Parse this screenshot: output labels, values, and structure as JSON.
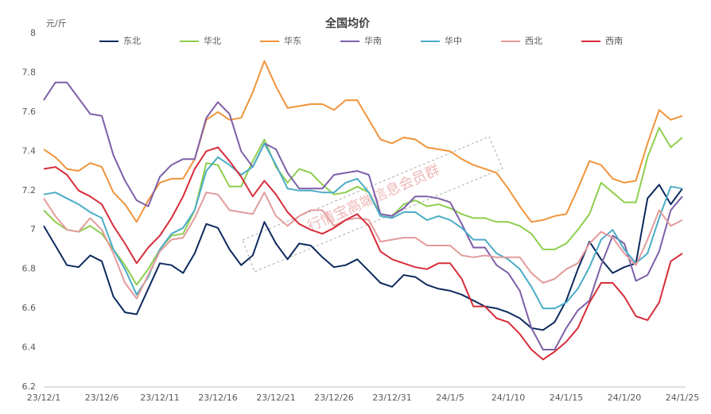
{
  "chart_data": {
    "type": "line",
    "title": "全国均价",
    "y_label": "元/斤",
    "watermark": "行情宝高端信息会员群",
    "categories": [
      "23/12/1",
      null,
      null,
      null,
      null,
      "23/12/6",
      null,
      null,
      null,
      null,
      "23/12/11",
      null,
      null,
      null,
      null,
      "23/12/16",
      null,
      null,
      null,
      null,
      "23/12/21",
      null,
      null,
      null,
      null,
      "23/12/26",
      null,
      null,
      null,
      null,
      "23/12/31",
      null,
      null,
      null,
      null,
      "24/1/5",
      null,
      null,
      null,
      null,
      "24/1/10",
      null,
      null,
      null,
      null,
      "24/1/15",
      null,
      null,
      null,
      null,
      "24/1/20",
      null,
      null,
      null,
      null,
      "24/1/25"
    ],
    "ylim": [
      6.2,
      8
    ],
    "yticks": [
      6.2,
      6.4,
      6.6,
      6.8,
      7,
      7.2,
      7.4,
      7.6,
      7.8,
      8
    ],
    "grid": false,
    "legend": "top",
    "series": [
      {
        "name": "东北",
        "color": "#0d2a5e",
        "values": [
          7.02,
          6.92,
          6.82,
          6.81,
          6.87,
          6.84,
          6.66,
          6.58,
          6.57,
          6.7,
          6.83,
          6.82,
          6.78,
          6.88,
          7.03,
          7.01,
          6.9,
          6.82,
          6.87,
          7.04,
          6.93,
          6.85,
          6.93,
          6.92,
          6.86,
          6.81,
          6.82,
          6.85,
          6.79,
          6.73,
          6.71,
          6.77,
          6.76,
          6.72,
          6.7,
          6.69,
          6.67,
          6.64,
          6.61,
          6.6,
          6.58,
          6.55,
          6.5,
          6.49,
          6.53,
          6.64,
          6.8,
          6.94,
          6.85,
          6.78,
          6.81,
          6.83,
          7.16,
          7.23,
          7.13,
          7.21
        ]
      },
      {
        "name": "华北",
        "color": "#8fce4f",
        "values": [
          7.1,
          7.04,
          7.0,
          6.99,
          7.02,
          6.98,
          6.9,
          6.82,
          6.72,
          6.8,
          6.9,
          6.97,
          6.98,
          7.1,
          7.34,
          7.33,
          7.22,
          7.22,
          7.35,
          7.46,
          7.32,
          7.24,
          7.31,
          7.29,
          7.23,
          7.18,
          7.19,
          7.22,
          7.19,
          7.08,
          7.07,
          7.13,
          7.15,
          7.12,
          7.13,
          7.11,
          7.08,
          7.06,
          7.06,
          7.04,
          7.04,
          7.02,
          6.98,
          6.9,
          6.9,
          6.93,
          7.0,
          7.08,
          7.24,
          7.19,
          7.14,
          7.14,
          7.37,
          7.52,
          7.42,
          7.47
        ]
      },
      {
        "name": "华东",
        "color": "#f0943b",
        "values": [
          7.41,
          7.37,
          7.31,
          7.3,
          7.34,
          7.32,
          7.19,
          7.13,
          7.04,
          7.15,
          7.24,
          7.26,
          7.26,
          7.36,
          7.56,
          7.6,
          7.56,
          7.57,
          7.7,
          7.86,
          7.73,
          7.62,
          7.63,
          7.64,
          7.64,
          7.61,
          7.66,
          7.66,
          7.56,
          7.46,
          7.44,
          7.47,
          7.46,
          7.42,
          7.41,
          7.4,
          7.36,
          7.33,
          7.31,
          7.29,
          7.21,
          7.12,
          7.04,
          7.05,
          7.07,
          7.08,
          7.21,
          7.35,
          7.33,
          7.26,
          7.24,
          7.25,
          7.44,
          7.61,
          7.56,
          7.58
        ]
      },
      {
        "name": "华南",
        "color": "#7e5fa8",
        "values": [
          7.66,
          7.75,
          7.75,
          7.67,
          7.59,
          7.58,
          7.38,
          7.25,
          7.15,
          7.12,
          7.27,
          7.33,
          7.36,
          7.36,
          7.57,
          7.65,
          7.59,
          7.4,
          7.32,
          7.44,
          7.41,
          7.29,
          7.21,
          7.21,
          7.21,
          7.28,
          7.29,
          7.3,
          7.28,
          7.08,
          7.07,
          7.11,
          7.17,
          7.17,
          7.16,
          7.14,
          7.03,
          6.91,
          6.91,
          6.82,
          6.78,
          6.69,
          6.5,
          6.39,
          6.39,
          6.5,
          6.59,
          6.64,
          6.82,
          6.97,
          6.93,
          6.74,
          6.77,
          6.89,
          7.1,
          7.17
        ]
      },
      {
        "name": "华中",
        "color": "#4bacc6",
        "values": [
          7.18,
          7.19,
          7.16,
          7.13,
          7.09,
          7.06,
          6.9,
          6.8,
          6.67,
          6.76,
          6.9,
          6.98,
          7.01,
          7.1,
          7.3,
          7.37,
          7.33,
          7.28,
          7.32,
          7.44,
          7.33,
          7.21,
          7.2,
          7.2,
          7.19,
          7.19,
          7.24,
          7.26,
          7.19,
          7.07,
          7.06,
          7.09,
          7.09,
          7.05,
          7.07,
          7.05,
          7.01,
          6.95,
          6.95,
          6.88,
          6.85,
          6.8,
          6.71,
          6.6,
          6.6,
          6.63,
          6.7,
          6.81,
          6.95,
          7.0,
          6.9,
          6.83,
          6.88,
          7.06,
          7.22,
          7.21
        ]
      },
      {
        "name": "西北",
        "color": "#e39b9b",
        "values": [
          7.16,
          7.07,
          7.0,
          6.99,
          7.06,
          7.0,
          6.88,
          6.73,
          6.65,
          6.77,
          6.89,
          6.95,
          6.96,
          7.06,
          7.19,
          7.18,
          7.1,
          7.09,
          7.08,
          7.19,
          7.07,
          7.02,
          7.07,
          7.1,
          7.1,
          7.02,
          7.05,
          7.06,
          7.05,
          6.94,
          6.95,
          6.96,
          6.96,
          6.92,
          6.92,
          6.92,
          6.87,
          6.86,
          6.87,
          6.86,
          6.86,
          6.86,
          6.78,
          6.73,
          6.75,
          6.8,
          6.83,
          6.93,
          6.99,
          6.96,
          6.88,
          6.82,
          6.95,
          7.1,
          7.02,
          7.05
        ]
      },
      {
        "name": "西南",
        "color": "#d62d3a",
        "values": [
          7.31,
          7.32,
          7.28,
          7.2,
          7.17,
          7.13,
          7.02,
          6.93,
          6.83,
          6.91,
          6.97,
          7.06,
          7.17,
          7.31,
          7.4,
          7.42,
          7.35,
          7.27,
          7.17,
          7.25,
          7.18,
          7.09,
          7.03,
          7.0,
          6.98,
          7.01,
          7.05,
          7.08,
          7.02,
          6.89,
          6.85,
          6.83,
          6.81,
          6.8,
          6.83,
          6.83,
          6.75,
          6.61,
          6.61,
          6.55,
          6.53,
          6.47,
          6.39,
          6.34,
          6.38,
          6.43,
          6.5,
          6.63,
          6.73,
          6.73,
          6.66,
          6.56,
          6.54,
          6.63,
          6.84,
          6.88
        ]
      }
    ]
  }
}
